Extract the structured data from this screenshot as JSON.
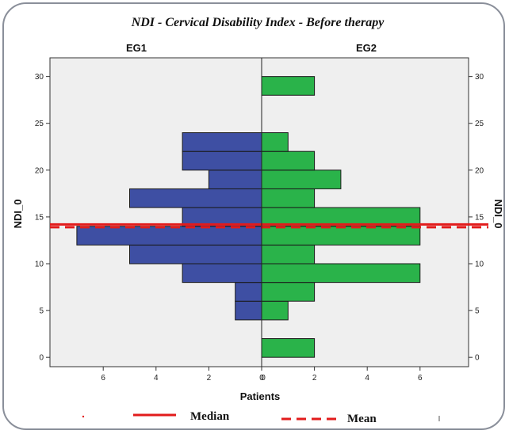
{
  "chart_data": {
    "type": "bar",
    "orientation": "horizontal-population-pyramid",
    "title": "NDI - Cervical Disability Index - Before therapy",
    "xlabel": "Patients",
    "ylabel_left": "NDI_0",
    "ylabel_right": "NDI_0",
    "group_left": "EG1",
    "group_right": "EG2",
    "bin_width": 2,
    "ylim": [
      -1,
      32
    ],
    "xlim": [
      -7,
      7
    ],
    "y_ticks": [
      0,
      5,
      10,
      15,
      20,
      25,
      30
    ],
    "y_tick_labels": [
      "0",
      "5",
      "10",
      "15",
      "20",
      "25",
      "30"
    ],
    "x_ticks_left": [
      6,
      4,
      2,
      0
    ],
    "x_ticks_right": [
      0,
      2,
      4,
      6
    ],
    "x_tick_labels_left": [
      "6",
      "4",
      "2",
      "0"
    ],
    "x_tick_labels_right": [
      "0",
      "2",
      "4",
      "6"
    ],
    "left_series": {
      "name": "EG1",
      "color": "#3e4fa3",
      "bins": [
        {
          "y": 5,
          "value": 1
        },
        {
          "y": 7,
          "value": 1
        },
        {
          "y": 9,
          "value": 3
        },
        {
          "y": 11,
          "value": 5
        },
        {
          "y": 13,
          "value": 7
        },
        {
          "y": 15,
          "value": 3
        },
        {
          "y": 17,
          "value": 5
        },
        {
          "y": 19,
          "value": 2
        },
        {
          "y": 21,
          "value": 3
        },
        {
          "y": 23,
          "value": 3
        }
      ]
    },
    "right_series": {
      "name": "EG2",
      "color": "#2ab34a",
      "bins": [
        {
          "y": 1,
          "value": 2
        },
        {
          "y": 5,
          "value": 1
        },
        {
          "y": 7,
          "value": 2
        },
        {
          "y": 9,
          "value": 6
        },
        {
          "y": 11,
          "value": 2
        },
        {
          "y": 13,
          "value": 6
        },
        {
          "y": 15,
          "value": 6
        },
        {
          "y": 17,
          "value": 2
        },
        {
          "y": 19,
          "value": 3
        },
        {
          "y": 21,
          "value": 2
        },
        {
          "y": 23,
          "value": 1
        },
        {
          "y": 29,
          "value": 2
        }
      ]
    },
    "reference_lines": [
      {
        "name": "Median",
        "y": 14.2,
        "style": "solid",
        "color": "#e21b1b"
      },
      {
        "name": "Mean",
        "y": 13.9,
        "style": "dashed",
        "color": "#e21b1b"
      }
    ],
    "legend": {
      "placement": "bottom",
      "items": [
        {
          "label": "Median",
          "style": "solid"
        },
        {
          "label": "Mean",
          "style": "dashed"
        }
      ]
    },
    "plot_background": "#efefef",
    "grid": false
  }
}
